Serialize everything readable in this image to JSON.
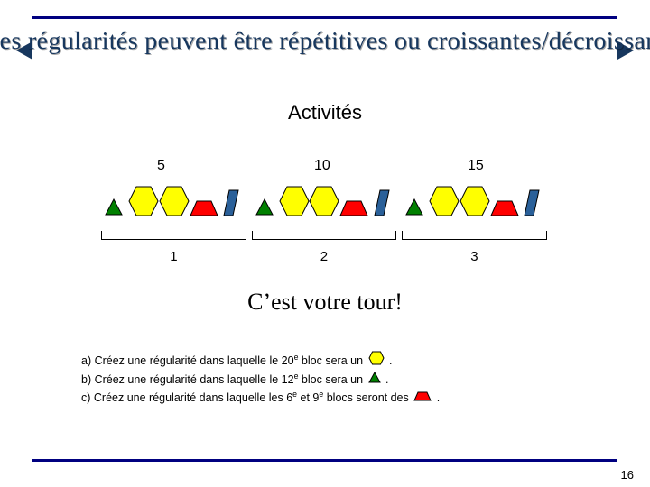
{
  "title": "Les régularités peuvent être répétitives ou croissantes/décroissantes",
  "subtitle": "Activités",
  "scale": {
    "a": "5",
    "b": "10",
    "c": "15"
  },
  "pattern": {
    "shapes": [
      "tri",
      "hex",
      "hex",
      "trap",
      "par",
      "tri",
      "hex",
      "hex",
      "trap",
      "par",
      "tri",
      "hex",
      "hex",
      "trap",
      "par"
    ],
    "colors": {
      "tri": "#008000",
      "hex": "#ffff00",
      "trap": "#ff0000",
      "par": "#2a6099",
      "stroke": "#000000"
    },
    "groups": [
      {
        "label": "1",
        "start": 0,
        "end": 4
      },
      {
        "label": "2",
        "start": 5,
        "end": 9
      },
      {
        "label": "3",
        "start": 10,
        "end": 14
      }
    ]
  },
  "tagline": "C’est votre tour!",
  "questions": {
    "a_pre": "a) Créez une régularité dans laquelle le 20",
    "a_sup": "e",
    "a_post1": " bloc sera un ",
    "a_post2": " .",
    "b_pre": "b) Créez une régularité dans laquelle le 12",
    "b_sup": "e",
    "b_post1": " bloc sera un ",
    "b_post2": " .",
    "c_pre": "c) Créez une régularité dans laquelle les 6",
    "c_sup1": "e",
    "c_mid": " et 9",
    "c_sup2": "e",
    "c_post1": " blocs seront des ",
    "c_post2": " ."
  },
  "page": "16"
}
